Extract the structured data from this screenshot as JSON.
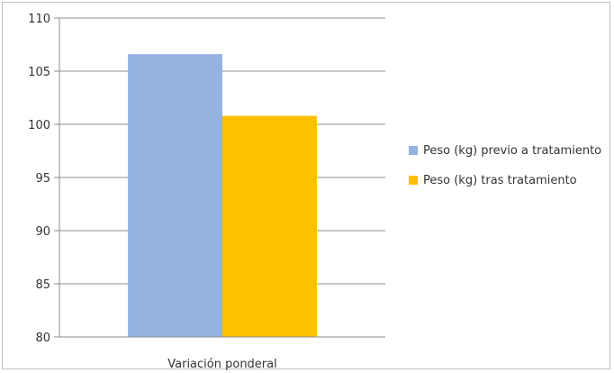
{
  "chart_data": {
    "type": "bar",
    "categories": [
      "Variación ponderal"
    ],
    "series": [
      {
        "name": "Peso (kg) previo a tratamiento",
        "values": [
          106.6
        ],
        "color": "#95b3e0"
      },
      {
        "name": "Peso (kg) tras tratamiento",
        "values": [
          100.8
        ],
        "color": "#ffc000"
      }
    ],
    "title": "",
    "xlabel": "",
    "ylabel": "",
    "ylim": [
      80,
      110
    ],
    "yticks": [
      80,
      85,
      90,
      95,
      100,
      105,
      110
    ],
    "grid": true,
    "legend_position": "right"
  },
  "colors": {
    "gridline": "#8c8c8c",
    "axis": "#8c8c8c"
  }
}
